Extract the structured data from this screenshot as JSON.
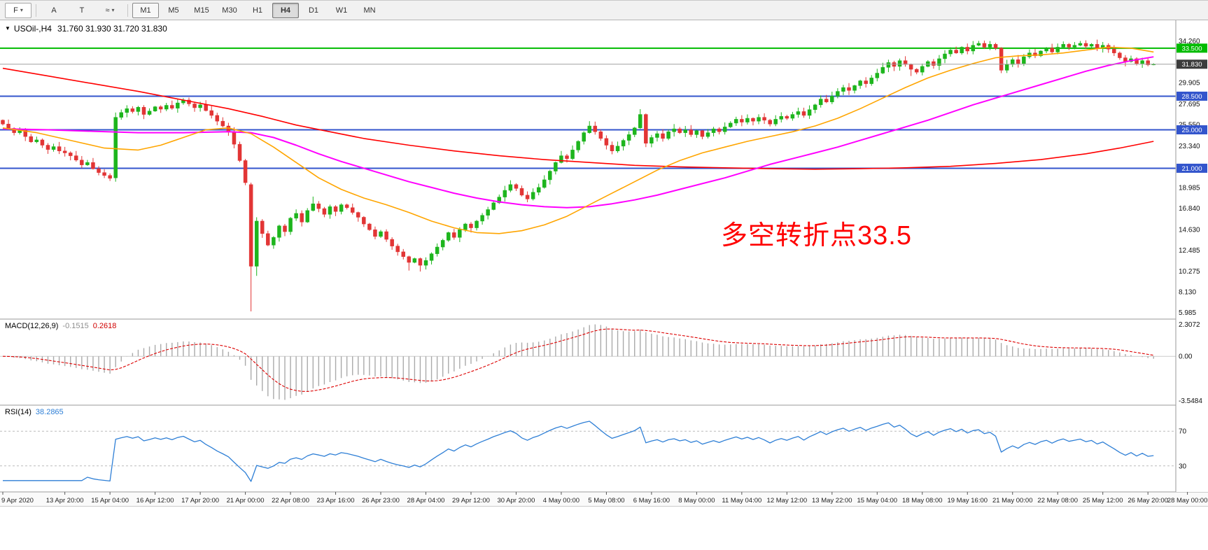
{
  "toolbar": {
    "left_buttons": [
      {
        "name": "symbol-combo-button",
        "label": "F",
        "caret": true,
        "combo": true
      },
      {
        "name": "cursor-tool-button",
        "label": "A",
        "caret": false,
        "combo": false
      },
      {
        "name": "text-tool-button",
        "label": "T",
        "caret": false,
        "combo": false
      },
      {
        "name": "line-studies-button",
        "label": "≈",
        "caret": true,
        "combo": false
      }
    ],
    "timeframes": [
      "M1",
      "M5",
      "M15",
      "M30",
      "H1",
      "H4",
      "D1",
      "W1",
      "MN"
    ],
    "active_timeframe": "H4",
    "framed_timeframe": "M1"
  },
  "chart_data": {
    "type": "candlestick",
    "symbol": "USOil-,H4",
    "title_ohlc": "31.760 31.930 31.720 31.830",
    "y_axis": {
      "p_top": 36.4,
      "p_bottom": 5.3,
      "tick_labels": [
        34.26,
        29.905,
        27.695,
        25.55,
        23.34,
        18.985,
        16.84,
        14.63,
        12.485,
        10.275,
        8.13,
        5.985
      ]
    },
    "x_labels": [
      {
        "bar": 0,
        "text": "9 Apr 2020"
      },
      {
        "bar": 11,
        "text": "13 Apr 20:00"
      },
      {
        "bar": 19,
        "text": "15 Apr 04:00"
      },
      {
        "bar": 27,
        "text": "16 Apr 12:00"
      },
      {
        "bar": 35,
        "text": "17 Apr 20:00"
      },
      {
        "bar": 43,
        "text": "21 Apr 00:00"
      },
      {
        "bar": 51,
        "text": "22 Apr 08:00"
      },
      {
        "bar": 59,
        "text": "23 Apr 16:00"
      },
      {
        "bar": 67,
        "text": "26 Apr 23:00"
      },
      {
        "bar": 75,
        "text": "28 Apr 04:00"
      },
      {
        "bar": 83,
        "text": "29 Apr 12:00"
      },
      {
        "bar": 91,
        "text": "30 Apr 20:00"
      },
      {
        "bar": 99,
        "text": "4 May 00:00"
      },
      {
        "bar": 107,
        "text": "5 May 08:00"
      },
      {
        "bar": 115,
        "text": "6 May 16:00"
      },
      {
        "bar": 123,
        "text": "8 May 00:00"
      },
      {
        "bar": 131,
        "text": "11 May 04:00"
      },
      {
        "bar": 139,
        "text": "12 May 12:00"
      },
      {
        "bar": 147,
        "text": "13 May 22:00"
      },
      {
        "bar": 155,
        "text": "15 May 04:00"
      },
      {
        "bar": 163,
        "text": "18 May 08:00"
      },
      {
        "bar": 171,
        "text": "19 May 16:00"
      },
      {
        "bar": 179,
        "text": "21 May 00:00"
      },
      {
        "bar": 187,
        "text": "22 May 08:00"
      },
      {
        "bar": 195,
        "text": "25 May 12:00"
      },
      {
        "bar": 203,
        "text": "26 May 20:00"
      },
      {
        "bar": 210,
        "text": "28 May 00:00"
      }
    ],
    "candles": {
      "first_open": 26.0,
      "closes": [
        25.6,
        25.15,
        24.7,
        24.95,
        24.3,
        23.75,
        23.95,
        23.4,
        22.95,
        23.25,
        22.8,
        22.6,
        22.3,
        21.85,
        21.35,
        21.6,
        20.95,
        20.55,
        20.25,
        19.95,
        26.3,
        26.8,
        27.2,
        26.9,
        27.35,
        26.6,
        26.95,
        27.4,
        27.15,
        27.55,
        27.25,
        27.8,
        28.1,
        27.7,
        27.3,
        27.6,
        27.0,
        26.5,
        25.9,
        25.4,
        24.8,
        23.5,
        21.8,
        19.5,
        10.8,
        15.5,
        14.2,
        13.0,
        13.8,
        15.0,
        14.4,
        15.8,
        16.3,
        15.4,
        16.6,
        17.3,
        16.8,
        16.2,
        17.0,
        16.5,
        17.2,
        16.9,
        16.4,
        15.9,
        15.2,
        14.6,
        13.9,
        14.4,
        13.6,
        12.9,
        12.3,
        11.8,
        11.2,
        11.6,
        10.9,
        11.4,
        12.1,
        12.8,
        13.5,
        14.3,
        13.8,
        14.6,
        15.2,
        14.8,
        15.5,
        16.1,
        16.7,
        17.4,
        18.0,
        18.7,
        19.3,
        18.9,
        18.2,
        17.8,
        18.5,
        19.0,
        19.8,
        20.7,
        21.6,
        22.3,
        22.0,
        22.9,
        23.8,
        24.7,
        25.4,
        24.8,
        24.1,
        23.4,
        22.8,
        23.3,
        23.9,
        24.5,
        25.2,
        26.6,
        23.6,
        24.2,
        24.6,
        24.1,
        24.8,
        25.1,
        24.7,
        25.0,
        24.5,
        24.9,
        24.3,
        24.7,
        25.1,
        24.8,
        25.3,
        25.7,
        26.1,
        25.8,
        26.2,
        25.9,
        26.3,
        26.0,
        25.6,
        26.1,
        26.4,
        26.2,
        26.6,
        26.9,
        26.5,
        27.1,
        27.6,
        28.2,
        27.9,
        28.5,
        29.0,
        29.4,
        29.1,
        29.6,
        30.1,
        29.8,
        30.4,
        30.9,
        31.5,
        32.0,
        31.6,
        32.2,
        31.8,
        31.3,
        31.0,
        31.6,
        32.1,
        31.7,
        32.4,
        32.9,
        33.3,
        33.0,
        33.6,
        33.2,
        33.8,
        34.0,
        33.6,
        33.9,
        33.5,
        31.2,
        31.8,
        32.3,
        31.9,
        32.6,
        33.0,
        32.7,
        33.2,
        33.5,
        33.1,
        33.6,
        33.9,
        33.6,
        33.8,
        34.0,
        33.7,
        33.9,
        33.5,
        33.8,
        33.4,
        33.0,
        32.5,
        32.1,
        32.4,
        31.9,
        32.2,
        31.76,
        31.83
      ],
      "ohlc_overrides": {
        "20": [
          20.0,
          26.8,
          19.6,
          26.3
        ],
        "44": [
          19.3,
          19.5,
          6.1,
          10.8
        ],
        "45": [
          10.8,
          15.9,
          9.8,
          15.5
        ],
        "55": [
          16.6,
          18.05,
          16.5,
          17.3
        ],
        "72": [
          11.8,
          11.9,
          10.35,
          11.2
        ],
        "74": [
          11.6,
          11.7,
          10.25,
          10.9
        ],
        "90": [
          18.7,
          19.75,
          18.5,
          19.3
        ],
        "99": [
          21.6,
          22.8,
          21.5,
          22.3
        ],
        "104": [
          24.7,
          25.9,
          24.6,
          25.4
        ],
        "113": [
          25.2,
          27.15,
          25.1,
          26.6
        ],
        "114": [
          26.6,
          26.7,
          23.2,
          23.6
        ],
        "161": [
          31.8,
          31.9,
          30.6,
          31.3
        ],
        "173": [
          33.8,
          34.26,
          33.7,
          34.0
        ],
        "177": [
          33.5,
          33.6,
          30.9,
          31.2
        ],
        "188": [
          33.6,
          34.2,
          33.5,
          33.9
        ],
        "191": [
          33.8,
          34.25,
          33.7,
          34.0
        ],
        "204": [
          31.76,
          31.93,
          31.72,
          31.83
        ]
      }
    },
    "overlays": {
      "hlines": [
        {
          "price": 33.5,
          "color": "#00bb00",
          "width": 2
        },
        {
          "price": 28.5,
          "color": "#3355cc",
          "width": 2
        },
        {
          "price": 25.0,
          "color": "#3355cc",
          "width": 2
        },
        {
          "price": 21.0,
          "color": "#3355cc",
          "width": 2
        }
      ],
      "current_price": {
        "price": 31.83,
        "badge_bg": "#3c3c3c",
        "line_color": "#a0a0a0"
      },
      "annotation": {
        "text": "多空转折点33.5",
        "color": "#ff0000"
      },
      "ma_lines": [
        {
          "name": "ma-slow-red",
          "color": "#ff0000",
          "width": 1.6,
          "points": [
            [
              0,
              31.4
            ],
            [
              8,
              30.6
            ],
            [
              16,
              29.8
            ],
            [
              24,
              29.0
            ],
            [
              32,
              28.1
            ],
            [
              40,
              27.2
            ],
            [
              46,
              26.4
            ],
            [
              52,
              25.5
            ],
            [
              58,
              24.8
            ],
            [
              64,
              24.1
            ],
            [
              72,
              23.4
            ],
            [
              80,
              22.8
            ],
            [
              88,
              22.3
            ],
            [
              96,
              21.9
            ],
            [
              104,
              21.6
            ],
            [
              112,
              21.3
            ],
            [
              120,
              21.15
            ],
            [
              128,
              21.05
            ],
            [
              136,
              20.95
            ],
            [
              144,
              20.9
            ],
            [
              152,
              20.95
            ],
            [
              160,
              21.05
            ],
            [
              168,
              21.2
            ],
            [
              176,
              21.5
            ],
            [
              184,
              21.9
            ],
            [
              192,
              22.5
            ],
            [
              198,
              23.1
            ],
            [
              204,
              23.8
            ]
          ]
        },
        {
          "name": "ma-medium-magenta",
          "color": "#ff00ff",
          "width": 2,
          "points": [
            [
              0,
              25.1
            ],
            [
              8,
              25.0
            ],
            [
              16,
              24.85
            ],
            [
              24,
              24.7
            ],
            [
              32,
              24.7
            ],
            [
              40,
              24.8
            ],
            [
              44,
              24.7
            ],
            [
              48,
              24.2
            ],
            [
              52,
              23.4
            ],
            [
              56,
              22.5
            ],
            [
              60,
              21.7
            ],
            [
              64,
              21.0
            ],
            [
              68,
              20.3
            ],
            [
              72,
              19.6
            ],
            [
              76,
              19.0
            ],
            [
              80,
              18.4
            ],
            [
              84,
              17.9
            ],
            [
              88,
              17.5
            ],
            [
              92,
              17.2
            ],
            [
              96,
              17.0
            ],
            [
              100,
              16.9
            ],
            [
              104,
              17.0
            ],
            [
              108,
              17.3
            ],
            [
              112,
              17.7
            ],
            [
              116,
              18.2
            ],
            [
              120,
              18.8
            ],
            [
              124,
              19.4
            ],
            [
              128,
              20.0
            ],
            [
              132,
              20.7
            ],
            [
              136,
              21.4
            ],
            [
              140,
              22.0
            ],
            [
              144,
              22.6
            ],
            [
              148,
              23.2
            ],
            [
              152,
              23.9
            ],
            [
              156,
              24.6
            ],
            [
              160,
              25.3
            ],
            [
              164,
              26.0
            ],
            [
              168,
              26.8
            ],
            [
              172,
              27.6
            ],
            [
              176,
              28.3
            ],
            [
              180,
              29.0
            ],
            [
              184,
              29.7
            ],
            [
              188,
              30.4
            ],
            [
              192,
              31.1
            ],
            [
              196,
              31.7
            ],
            [
              200,
              32.2
            ],
            [
              204,
              32.6
            ]
          ]
        },
        {
          "name": "ma-fast-orange",
          "color": "#ffa500",
          "width": 1.6,
          "points": [
            [
              0,
              25.2
            ],
            [
              6,
              24.7
            ],
            [
              12,
              23.9
            ],
            [
              18,
              23.1
            ],
            [
              24,
              22.9
            ],
            [
              28,
              23.4
            ],
            [
              32,
              24.2
            ],
            [
              36,
              25.0
            ],
            [
              40,
              25.2
            ],
            [
              44,
              24.6
            ],
            [
              48,
              23.2
            ],
            [
              52,
              21.6
            ],
            [
              56,
              20.0
            ],
            [
              60,
              18.8
            ],
            [
              64,
              17.9
            ],
            [
              68,
              17.2
            ],
            [
              72,
              16.4
            ],
            [
              76,
              15.5
            ],
            [
              80,
              14.8
            ],
            [
              84,
              14.3
            ],
            [
              88,
              14.2
            ],
            [
              92,
              14.5
            ],
            [
              96,
              15.1
            ],
            [
              100,
              16.0
            ],
            [
              104,
              17.2
            ],
            [
              108,
              18.4
            ],
            [
              112,
              19.6
            ],
            [
              116,
              20.8
            ],
            [
              120,
              21.8
            ],
            [
              124,
              22.6
            ],
            [
              128,
              23.2
            ],
            [
              132,
              23.8
            ],
            [
              136,
              24.3
            ],
            [
              140,
              24.8
            ],
            [
              144,
              25.4
            ],
            [
              148,
              26.2
            ],
            [
              152,
              27.2
            ],
            [
              156,
              28.3
            ],
            [
              160,
              29.4
            ],
            [
              164,
              30.4
            ],
            [
              168,
              31.2
            ],
            [
              172,
              31.9
            ],
            [
              176,
              32.5
            ],
            [
              180,
              32.7
            ],
            [
              184,
              32.8
            ],
            [
              188,
              33.0
            ],
            [
              192,
              33.3
            ],
            [
              196,
              33.6
            ],
            [
              200,
              33.5
            ],
            [
              204,
              33.1
            ]
          ]
        }
      ]
    },
    "indicators": {
      "macd": {
        "label": "MACD(12,26,9)",
        "value_main": "-0.1515",
        "value_signal": "0.2618",
        "fast": 12,
        "slow": 26,
        "signal": 9,
        "scale_top": "2.3072",
        "scale_zero": "0.00",
        "scale_bottom": "-3.5484",
        "histogram_color": "#aaaaaa",
        "signal_color": "#dd0000"
      },
      "rsi": {
        "label": "RSI(14)",
        "value": "38.2865",
        "period": 14,
        "levels": [
          70,
          30
        ],
        "line_color": "#2e7fd6"
      }
    }
  },
  "colors": {
    "candle_up": "#1db51d",
    "candle_down": "#e23535",
    "panel_border": "#9a9a9a",
    "scale_text": "#111111",
    "axis_text": "#222222"
  }
}
